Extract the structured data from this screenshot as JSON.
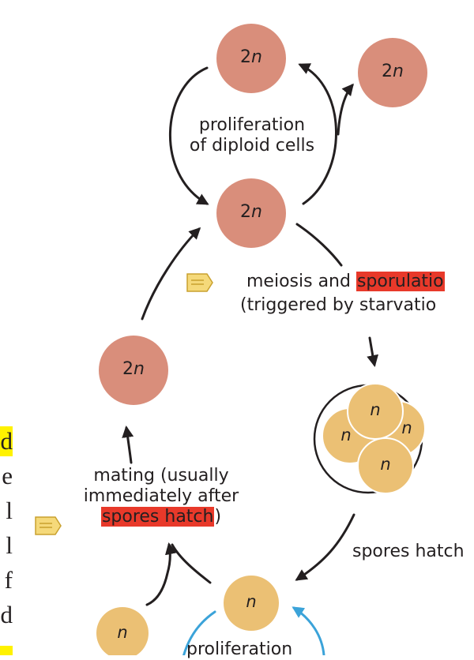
{
  "cells": {
    "diploid_label": "2n",
    "haploid_label": "n",
    "diploid_color": "#d98e7b",
    "haploid_color": "#ebc074",
    "ascus_stroke": "#231f20"
  },
  "labels": {
    "proliferation_diploid_1": "proliferation",
    "proliferation_diploid_2": "of diploid cells",
    "meiosis_prefix": "meiosis and ",
    "meiosis_highlight": "sporulatio",
    "triggered": "(triggered by starvatio",
    "spores_hatch": "spores hatch",
    "mating_1": "mating (usually",
    "mating_2": "immediately after",
    "mating_3_highlight": "spores hatch",
    "mating_3_suffix": ")",
    "proliferation_haploid": "proliferation"
  },
  "side_text": {
    "glyphs": [
      "d",
      "e",
      "l",
      "l",
      "f",
      "d"
    ],
    "highlight_color": "#fff200"
  },
  "icons": {
    "note_icon": "sticky-note-icon",
    "note_color": "#f5d97a",
    "arrow_color": "#231f20",
    "haploid_cycle_arrow_color": "#3ba3d9"
  }
}
